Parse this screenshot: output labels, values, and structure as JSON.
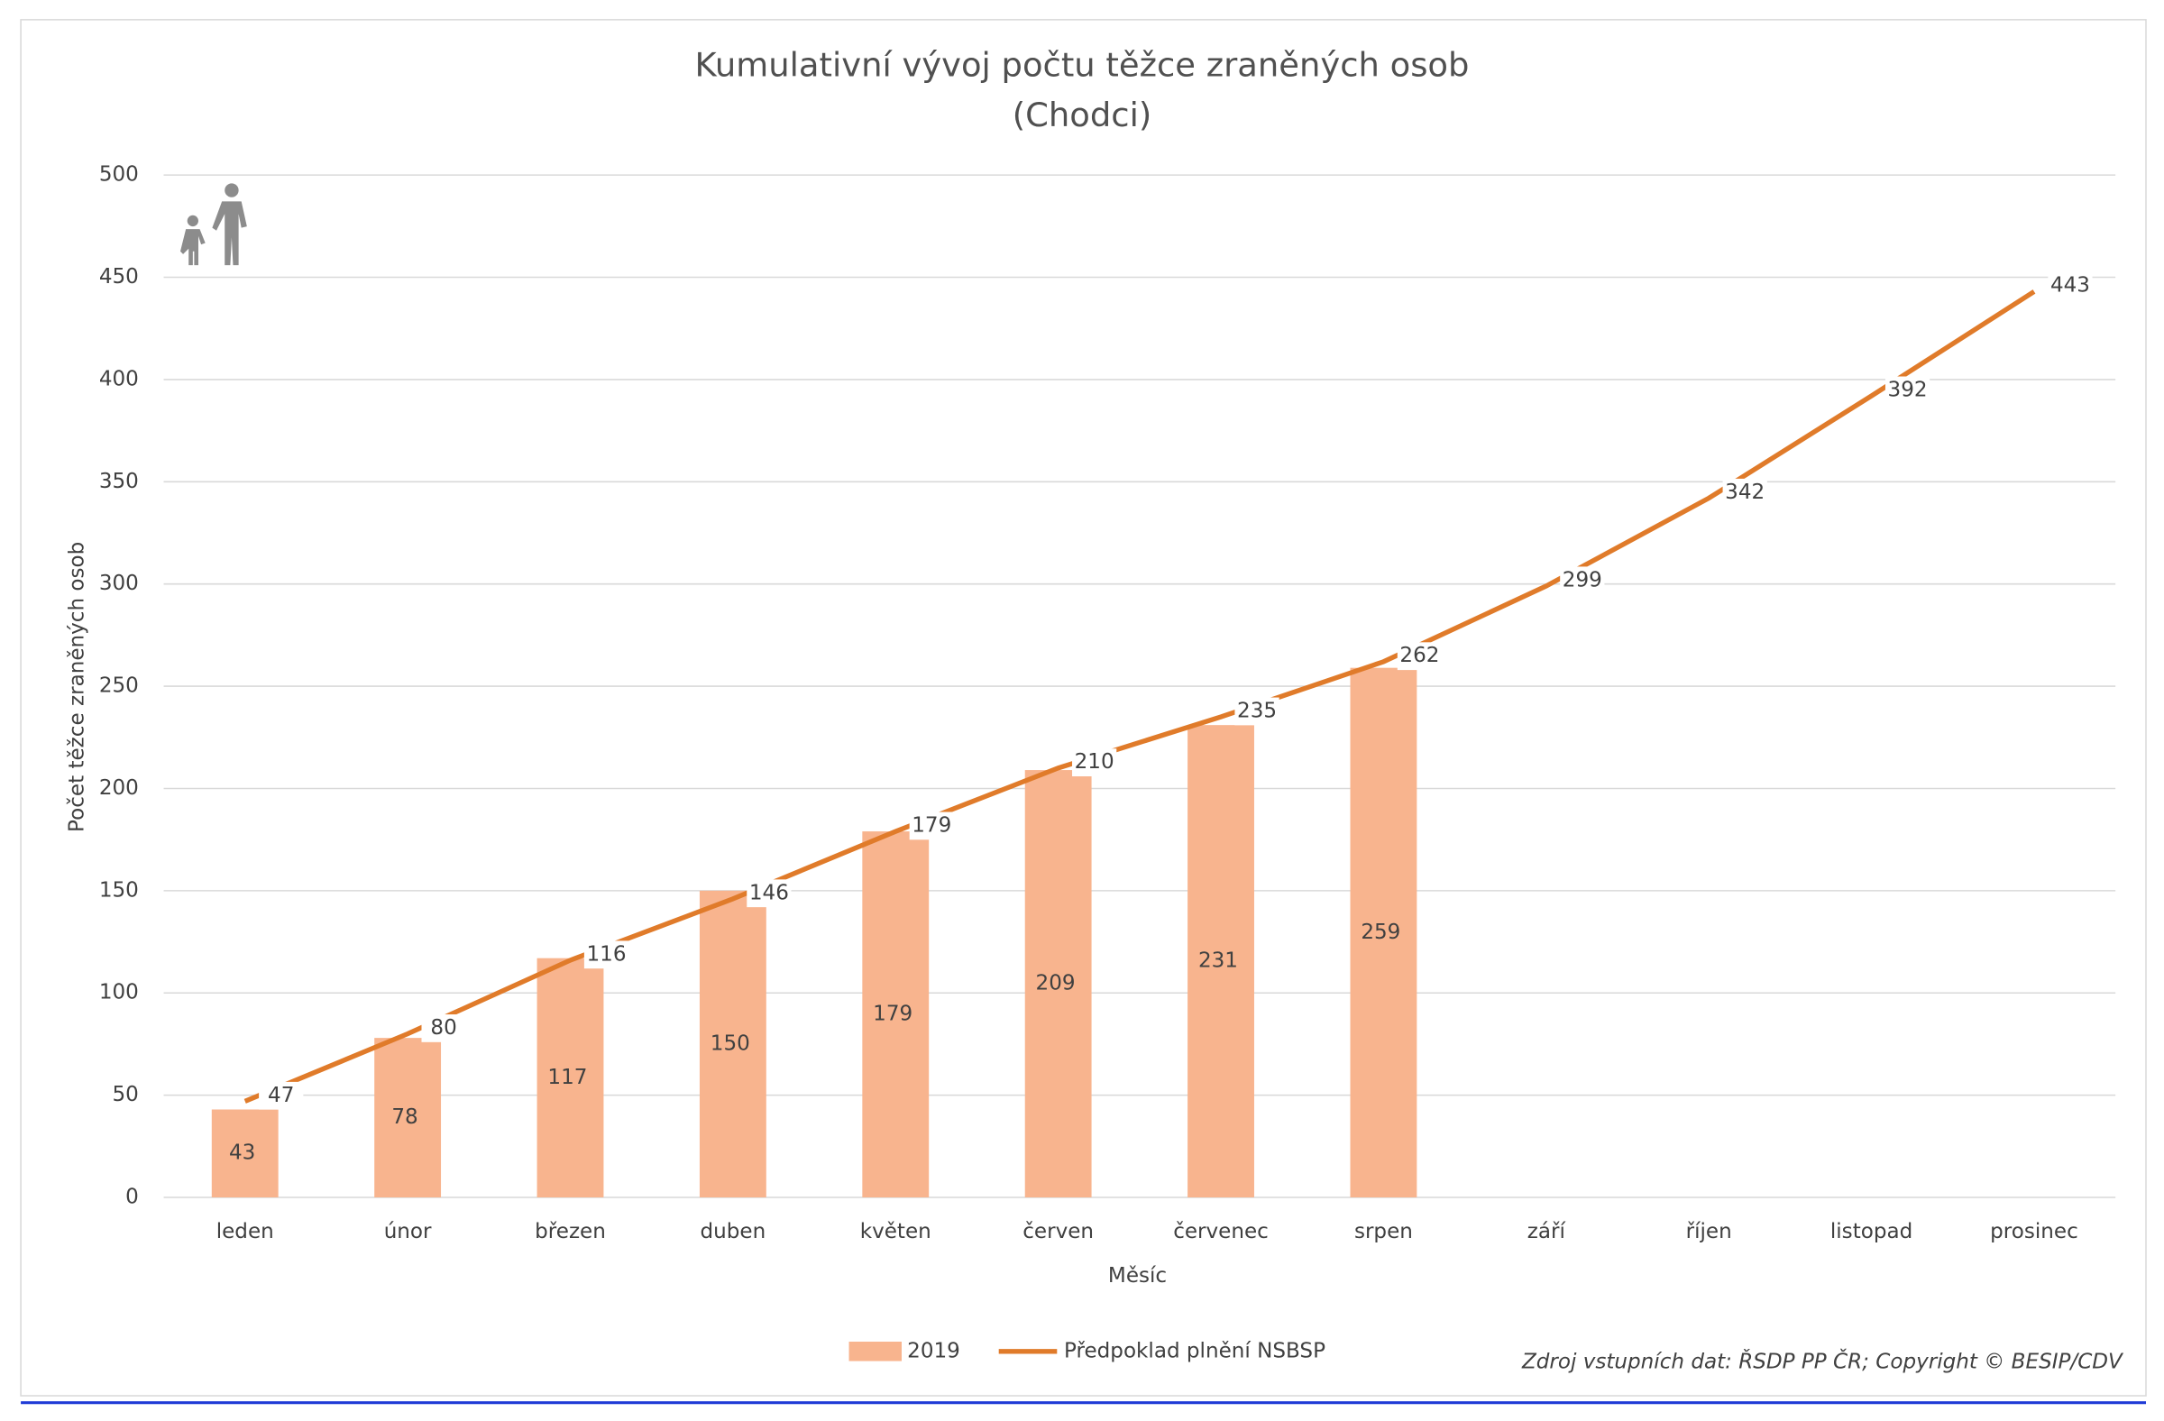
{
  "chart_data": {
    "type": "bar",
    "title": "Kumulativní vývoj počtu těžce zraněných osob",
    "subtitle": "(Chodci)",
    "x_label": "Měsíc",
    "y_label": "Počet těžce zraněných osob",
    "source": "Zdroj vstupních dat: ŘSDP PP ČR; Copyright © BESIP/CDV",
    "categories": [
      "leden",
      "únor",
      "březen",
      "duben",
      "květen",
      "červen",
      "červenec",
      "srpen",
      "září",
      "říjen",
      "listopad",
      "prosinec"
    ],
    "series": [
      {
        "name": "2019",
        "type": "bar",
        "color": "#f8b48e",
        "values": [
          43,
          78,
          117,
          150,
          179,
          209,
          231,
          259,
          null,
          null,
          null,
          null
        ]
      },
      {
        "name": "Předpoklad plnění NSBSP",
        "type": "line",
        "color": "#e07b2a",
        "values": [
          47,
          80,
          116,
          146,
          179,
          210,
          235,
          262,
          299,
          342,
          392,
          443
        ]
      }
    ],
    "ylim": [
      0,
      500
    ],
    "yticks": [
      0,
      50,
      100,
      150,
      200,
      250,
      300,
      350,
      400,
      450,
      500
    ],
    "grid": true,
    "legend": "bottom"
  }
}
